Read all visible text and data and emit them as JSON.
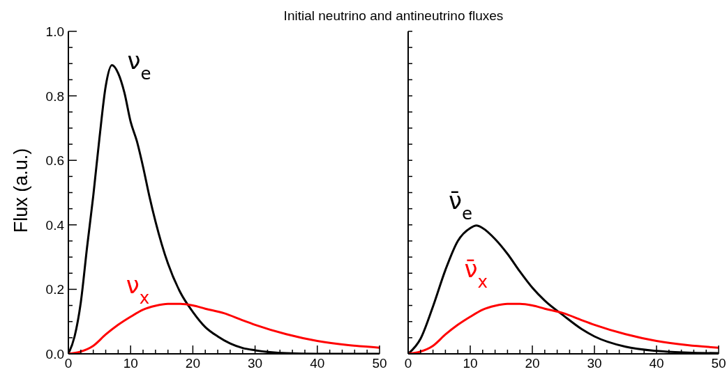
{
  "chart_data": [
    {
      "type": "line",
      "title": "Initial neutrino and antineutrino fluxes",
      "ylabel": "Flux (a.u.)",
      "xlim": [
        0,
        50
      ],
      "ylim": [
        0,
        1
      ],
      "xticks": [
        0,
        {
          "value": 2,
          "label": null
        },
        {
          "value": 4,
          "label": null
        },
        {
          "value": 6,
          "label": null
        },
        {
          "value": 8,
          "label": null
        },
        10,
        {
          "value": 12,
          "label": null
        },
        {
          "value": 14,
          "label": null
        },
        {
          "value": 16,
          "label": null
        },
        {
          "value": 18,
          "label": null
        },
        20,
        {
          "value": 22,
          "label": null
        },
        {
          "value": 24,
          "label": null
        },
        {
          "value": 26,
          "label": null
        },
        {
          "value": 28,
          "label": null
        },
        30,
        {
          "value": 32,
          "label": null
        },
        {
          "value": 34,
          "label": null
        },
        {
          "value": 36,
          "label": null
        },
        {
          "value": 38,
          "label": null
        },
        40,
        {
          "value": 42,
          "label": null
        },
        {
          "value": 44,
          "label": null
        },
        {
          "value": 46,
          "label": null
        },
        {
          "value": 48,
          "label": null
        },
        50
      ],
      "yticks": [
        {
          "value": 0,
          "label": "0.0"
        },
        {
          "value": 0.05,
          "label": null
        },
        {
          "value": 0.1,
          "label": null
        },
        {
          "value": 0.15,
          "label": null
        },
        {
          "value": 0.2,
          "label": "0.2"
        },
        {
          "value": 0.25,
          "label": null
        },
        {
          "value": 0.3,
          "label": null
        },
        {
          "value": 0.35,
          "label": null
        },
        {
          "value": 0.4,
          "label": "0.4"
        },
        {
          "value": 0.45,
          "label": null
        },
        {
          "value": 0.5,
          "label": null
        },
        {
          "value": 0.55,
          "label": null
        },
        {
          "value": 0.6,
          "label": "0.6"
        },
        {
          "value": 0.65,
          "label": null
        },
        {
          "value": 0.7,
          "label": null
        },
        {
          "value": 0.75,
          "label": null
        },
        {
          "value": 0.8,
          "label": "0.8"
        },
        {
          "value": 0.85,
          "label": null
        },
        {
          "value": 0.9,
          "label": null
        },
        {
          "value": 0.95,
          "label": null
        },
        {
          "value": 1,
          "label": "1.0"
        }
      ],
      "grid": false,
      "legend": false,
      "marker": "none",
      "line_style": "solid",
      "series": [
        {
          "name": "ν$_{e}$",
          "color": "#000000",
          "x": [
            0,
            1,
            2,
            3,
            4,
            5,
            6,
            7,
            8,
            9,
            10,
            11,
            12,
            13,
            14,
            15,
            16,
            18,
            20,
            22,
            24,
            26,
            28,
            30,
            35,
            40,
            50
          ],
          "values": [
            0,
            0.054,
            0.16,
            0.33,
            0.49,
            0.67,
            0.83,
            0.895,
            0.87,
            0.81,
            0.72,
            0.66,
            0.58,
            0.49,
            0.41,
            0.34,
            0.28,
            0.19,
            0.13,
            0.083,
            0.054,
            0.032,
            0.018,
            0.011,
            0.002,
            0,
            0
          ]
        },
        {
          "name": "ν$_{x}$",
          "color": "#ff0000",
          "x": [
            0,
            2,
            4,
            6,
            8,
            10,
            12,
            14,
            16,
            18,
            20,
            22,
            25,
            28,
            30,
            35,
            40,
            45,
            50
          ],
          "values": [
            0,
            0.007,
            0.025,
            0.06,
            0.09,
            0.115,
            0.137,
            0.149,
            0.155,
            0.155,
            0.15,
            0.14,
            0.126,
            0.104,
            0.09,
            0.061,
            0.04,
            0.027,
            0.019
          ]
        }
      ]
    },
    {
      "type": "line",
      "xlim": [
        0,
        50
      ],
      "ylim": [
        0,
        1
      ],
      "tick_labels": "x",
      "xticks": [
        0,
        {
          "value": 2,
          "label": null
        },
        {
          "value": 4,
          "label": null
        },
        {
          "value": 6,
          "label": null
        },
        {
          "value": 8,
          "label": null
        },
        10,
        {
          "value": 12,
          "label": null
        },
        {
          "value": 14,
          "label": null
        },
        {
          "value": 16,
          "label": null
        },
        {
          "value": 18,
          "label": null
        },
        20,
        {
          "value": 22,
          "label": null
        },
        {
          "value": 24,
          "label": null
        },
        {
          "value": 26,
          "label": null
        },
        {
          "value": 28,
          "label": null
        },
        30,
        {
          "value": 32,
          "label": null
        },
        {
          "value": 34,
          "label": null
        },
        {
          "value": 36,
          "label": null
        },
        {
          "value": 38,
          "label": null
        },
        40,
        {
          "value": 42,
          "label": null
        },
        {
          "value": 44,
          "label": null
        },
        {
          "value": 46,
          "label": null
        },
        {
          "value": 48,
          "label": null
        },
        50
      ],
      "yticks": [
        {
          "value": 0,
          "label": null
        },
        {
          "value": 0.05,
          "label": null
        },
        {
          "value": 0.1,
          "label": null
        },
        {
          "value": 0.15,
          "label": null
        },
        {
          "value": 0.2,
          "label": null
        },
        {
          "value": 0.25,
          "label": null
        },
        {
          "value": 0.3,
          "label": null
        },
        {
          "value": 0.35,
          "label": null
        },
        {
          "value": 0.4,
          "label": null
        },
        {
          "value": 0.45,
          "label": null
        },
        {
          "value": 0.5,
          "label": null
        },
        {
          "value": 0.55,
          "label": null
        },
        {
          "value": 0.6,
          "label": null
        },
        {
          "value": 0.65,
          "label": null
        },
        {
          "value": 0.7,
          "label": null
        },
        {
          "value": 0.75,
          "label": null
        },
        {
          "value": 0.8,
          "label": null
        },
        {
          "value": 0.85,
          "label": null
        },
        {
          "value": 0.9,
          "label": null
        },
        {
          "value": 0.95,
          "label": null
        },
        {
          "value": 1,
          "label": null
        }
      ],
      "grid": false,
      "legend": false,
      "marker": "none",
      "line_style": "solid",
      "series": [
        {
          "name": "ν̄$_{e}$",
          "color": "#000000",
          "x": [
            0,
            2,
            4,
            6,
            8,
            10,
            11,
            12,
            14,
            16,
            18,
            20,
            22,
            25,
            28,
            30,
            35,
            40,
            45,
            50
          ],
          "values": [
            0,
            0.047,
            0.147,
            0.26,
            0.35,
            0.39,
            0.398,
            0.39,
            0.356,
            0.31,
            0.255,
            0.205,
            0.165,
            0.119,
            0.076,
            0.054,
            0.022,
            0.009,
            0.004,
            0.002
          ]
        },
        {
          "name": "ν̄$_{x}$",
          "color": "#ff0000",
          "x": [
            0,
            2,
            4,
            6,
            8,
            10,
            12,
            14,
            16,
            18,
            20,
            22,
            25,
            28,
            30,
            35,
            40,
            45,
            50
          ],
          "values": [
            0,
            0.007,
            0.025,
            0.06,
            0.09,
            0.115,
            0.137,
            0.149,
            0.155,
            0.155,
            0.15,
            0.14,
            0.126,
            0.104,
            0.09,
            0.061,
            0.04,
            0.027,
            0.019
          ]
        }
      ]
    }
  ]
}
